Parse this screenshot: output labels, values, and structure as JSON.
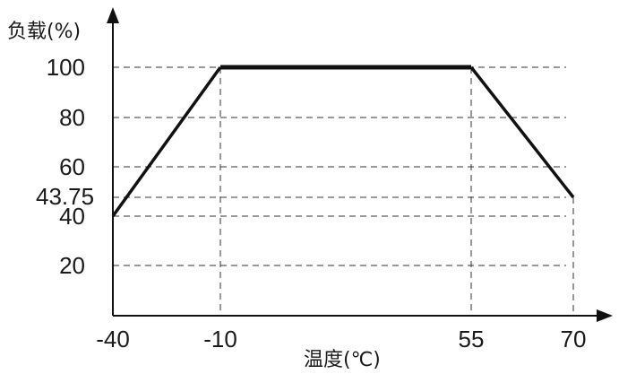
{
  "chart_data": {
    "type": "line",
    "ylabel": "负载(%)",
    "xlabel": "温度(℃)",
    "x_ticks": [
      "-40",
      "-10",
      "55",
      "70"
    ],
    "y_ticks": [
      "20",
      "40",
      "43.75",
      "60",
      "80",
      "100"
    ],
    "xlim": [
      -40,
      70
    ],
    "ylim": [
      0,
      100
    ],
    "grid": "dashed",
    "series": [
      {
        "x": [
          -40,
          -10,
          55,
          70
        ],
        "y": [
          40,
          100,
          100,
          43.75
        ],
        "color": "#111111"
      }
    ]
  }
}
